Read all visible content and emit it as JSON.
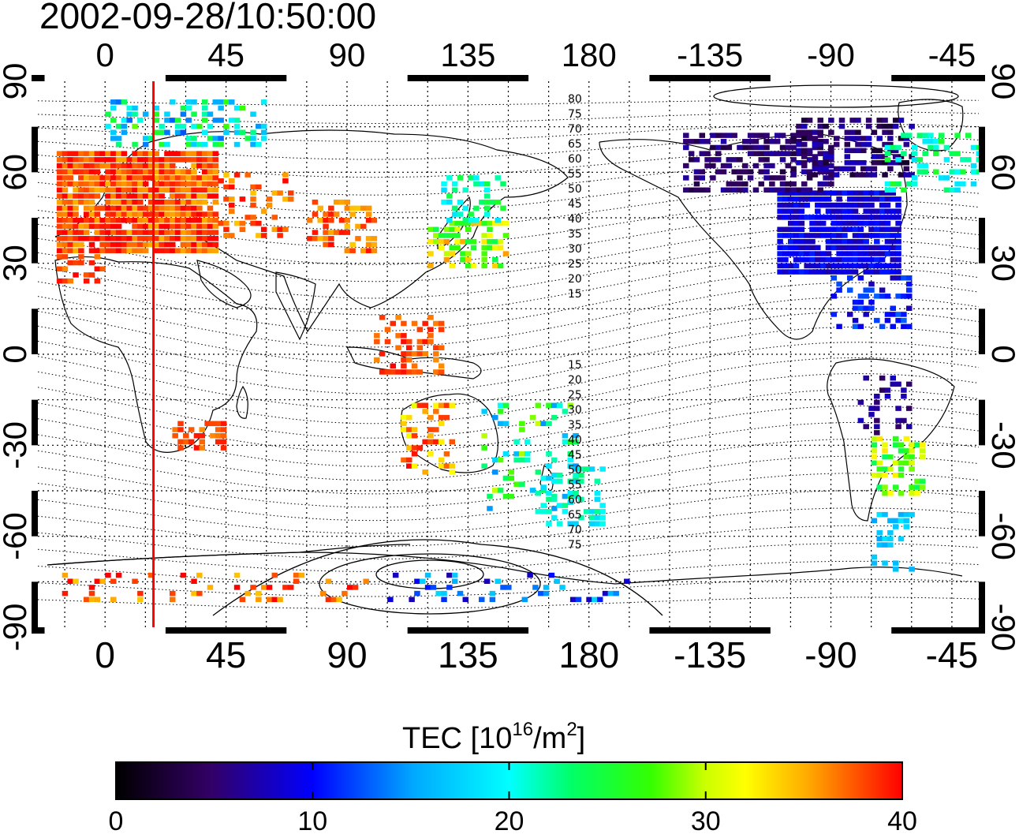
{
  "title": "2002-09-28/10:50:00",
  "map": {
    "lon_ticks": [
      "0",
      "45",
      "90",
      "135",
      "180",
      "-135",
      "-90",
      "-45"
    ],
    "lat_ticks": [
      "90",
      "60",
      "30",
      "0",
      "-30",
      "-60",
      "-90"
    ],
    "marker_longitude": 18,
    "contour_labels": [
      "80",
      "75",
      "70",
      "65",
      "60",
      "55",
      "50",
      "45",
      "40",
      "35",
      "30",
      "25",
      "20",
      "15",
      "15",
      "20",
      "25",
      "30",
      "35",
      "40",
      "45",
      "50",
      "55",
      "60",
      "65",
      "70",
      "75"
    ]
  },
  "colorbar": {
    "label_main": "TEC  [10",
    "label_sup1": "16",
    "label_mid": "/m",
    "label_sup2": "2",
    "label_end": "]",
    "min": 0,
    "max": 40,
    "ticks": [
      "0",
      "10",
      "20",
      "30",
      "40"
    ]
  },
  "colors": {
    "marker": "#ff0000",
    "scale": [
      "#000000",
      "#3a0066",
      "#0000ff",
      "#00ffff",
      "#00ff00",
      "#ffff00",
      "#ff0000"
    ]
  },
  "tec_regions": [
    {
      "region": "europe",
      "tec": 38
    },
    {
      "region": "north-america",
      "tec": 10
    },
    {
      "region": "east-asia",
      "tec": 24
    },
    {
      "region": "south-america",
      "tec": 28
    }
  ]
}
